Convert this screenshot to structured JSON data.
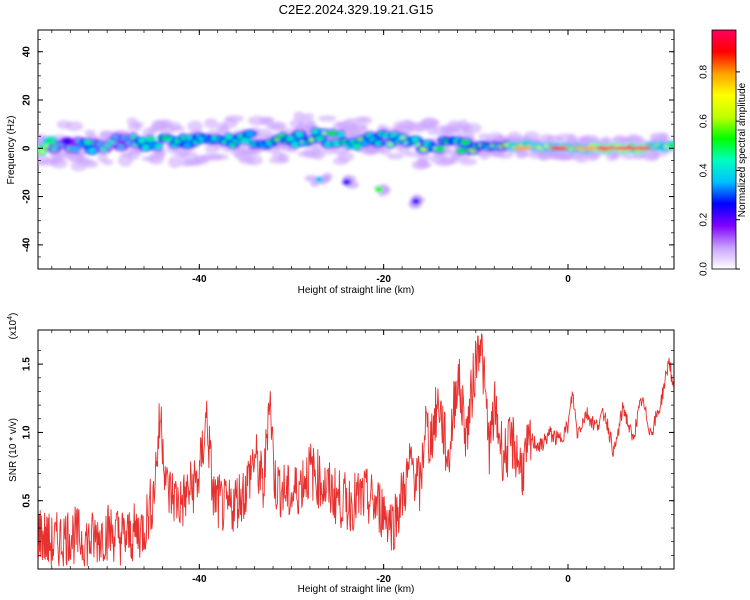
{
  "title": "C2E2.2024.329.19.21.G15",
  "chart_data": [
    {
      "type": "heatmap",
      "title": "C2E2.2024.329.19.21.G15",
      "xlabel": "Height of straight line (km)",
      "ylabel": "Frequency (Hz)",
      "xlim": [
        -57.5,
        11.5
      ],
      "ylim": [
        -50,
        49
      ],
      "x_ticks": [
        -40,
        -20,
        0
      ],
      "y_ticks": [
        -40,
        -20,
        0,
        20,
        40
      ],
      "colorbar": {
        "label": "Normalized spectral amplitude",
        "range": [
          0,
          0.97
        ],
        "ticks": [
          0.0,
          0.2,
          0.4,
          0.6,
          0.8
        ],
        "tick_labels": [
          "0.0",
          "0.2",
          "0.4",
          "0.6",
          "0.8"
        ],
        "colors": [
          "#ffffff",
          "#c8a0ff",
          "#8000ff",
          "#0000ff",
          "#00c0ff",
          "#00ffc0",
          "#00ff00",
          "#c0ff00",
          "#ffff00",
          "#ffa000",
          "#ff0000",
          "#ff0060"
        ]
      },
      "band": [
        {
          "x": -56,
          "f": 2,
          "amp": 0.45
        },
        {
          "x": -52,
          "f": 1,
          "amp": 0.5
        },
        {
          "x": -48,
          "f": 3,
          "amp": 0.45
        },
        {
          "x": -44,
          "f": 2,
          "amp": 0.55
        },
        {
          "x": -40,
          "f": 3,
          "amp": 0.5
        },
        {
          "x": -36,
          "f": 4,
          "amp": 0.5
        },
        {
          "x": -32,
          "f": 3,
          "amp": 0.55
        },
        {
          "x": -28,
          "f": 5,
          "amp": 0.6
        },
        {
          "x": -24,
          "f": 3,
          "amp": 0.55
        },
        {
          "x": -20,
          "f": 4,
          "amp": 0.5
        },
        {
          "x": -16,
          "f": 2,
          "amp": 0.6
        },
        {
          "x": -12,
          "f": 1,
          "amp": 0.6
        },
        {
          "x": -8,
          "f": 1,
          "amp": 0.65
        },
        {
          "x": -4,
          "f": 1,
          "amp": 0.75
        },
        {
          "x": 0,
          "f": 0,
          "amp": 0.85
        },
        {
          "x": 4,
          "f": 0,
          "amp": 0.9
        },
        {
          "x": 8,
          "f": 0,
          "amp": 0.95
        },
        {
          "x": 11,
          "f": 1,
          "amp": 0.7
        }
      ],
      "patches": [
        {
          "x": -27,
          "f": -13,
          "amp": 0.35
        },
        {
          "x": -24,
          "f": -14,
          "amp": 0.25
        },
        {
          "x": -20.5,
          "f": -17,
          "amp": 0.5
        },
        {
          "x": -16.5,
          "f": -22,
          "amp": 0.25
        }
      ]
    },
    {
      "type": "line",
      "xlabel": "Height of straight line (km)",
      "ylabel": "SNR (10 * v/v)",
      "y_multiplier": "(x10",
      "y_multiplier_exp": "4",
      "y_multiplier_close": ")",
      "xlim": [
        -57.5,
        11.5
      ],
      "ylim": [
        0,
        1.75
      ],
      "x_ticks": [
        -40,
        -20,
        0
      ],
      "y_ticks": [
        0.5,
        1.0,
        1.5
      ],
      "y_tick_labels": [
        "0.5",
        "1.0",
        "1.5"
      ],
      "series": [
        {
          "color": "#e8302e",
          "x": [
            -57.5,
            -56,
            -54,
            -52,
            -50,
            -48,
            -46,
            -45,
            -44.2,
            -43.5,
            -42,
            -40,
            -39.2,
            -38.5,
            -37,
            -35,
            -34,
            -33,
            -32.4,
            -31.8,
            -30,
            -28,
            -26,
            -24,
            -22,
            -20,
            -19,
            -18,
            -17,
            -16,
            -15.5,
            -15,
            -14,
            -13,
            -12,
            -11,
            -10,
            -9.5,
            -9,
            -8.5,
            -8,
            -7,
            -6,
            -5,
            -4,
            -3,
            -2,
            -1,
            0,
            0.5,
            1,
            2,
            3,
            4,
            5,
            6,
            7,
            8,
            9,
            10,
            11,
            11.5
          ],
          "y": [
            0.3,
            0.2,
            0.28,
            0.22,
            0.3,
            0.25,
            0.32,
            0.55,
            1.15,
            0.6,
            0.5,
            0.7,
            1.15,
            0.55,
            0.45,
            0.6,
            0.85,
            0.6,
            1.35,
            0.65,
            0.55,
            0.75,
            0.6,
            0.5,
            0.55,
            0.45,
            0.35,
            0.55,
            0.8,
            0.6,
            1.1,
            0.95,
            1.25,
            0.8,
            1.45,
            1.0,
            1.55,
            1.75,
            1.3,
            0.9,
            1.2,
            0.85,
            0.95,
            0.75,
            0.95,
            0.9,
            1.0,
            0.95,
            1.05,
            1.3,
            1.0,
            1.15,
            1.05,
            1.15,
            0.85,
            1.2,
            0.95,
            1.25,
            1.0,
            1.2,
            1.55,
            1.25
          ]
        }
      ]
    }
  ]
}
